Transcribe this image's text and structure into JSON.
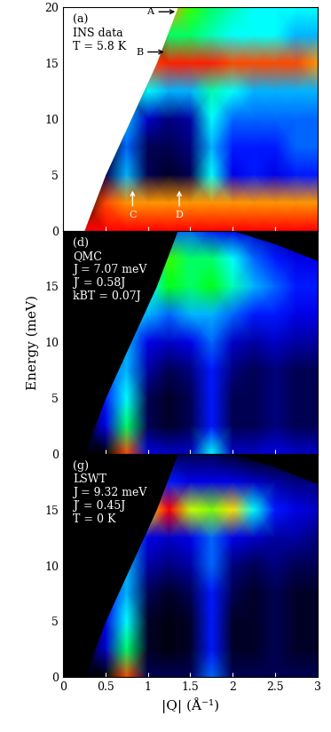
{
  "chart_data": [
    {
      "type": "heatmap",
      "text_lines": [
        "(a)",
        "INS data",
        "T = 5.8 K"
      ],
      "xlim": [
        0,
        3
      ],
      "ylim": [
        0,
        20
      ],
      "xticks": [
        0,
        0.5,
        1,
        1.5,
        2,
        2.5,
        3
      ],
      "yticks": [
        0,
        5,
        10,
        15,
        20
      ],
      "tick_labels": "y",
      "zlim": [
        0,
        1
      ],
      "q": [
        0,
        0.25,
        0.5,
        0.75,
        1.0,
        1.25,
        1.5,
        1.75,
        2.0,
        2.25,
        2.5,
        2.75,
        3.0
      ],
      "energy": [
        0,
        2.5,
        5,
        7.5,
        10,
        12.5,
        15,
        17.5,
        20
      ],
      "cells": [
        [
          0,
          1,
          1,
          1,
          1,
          1,
          1,
          1,
          1,
          1,
          1,
          1,
          1
        ],
        [
          0,
          0,
          0.95,
          0.9,
          0.9,
          0.9,
          0.9,
          0.9,
          0.9,
          0.9,
          0.9,
          0.9,
          0.9
        ],
        [
          0,
          0,
          0.1,
          0.45,
          0.1,
          0.05,
          0.1,
          0.5,
          0.3,
          0.35,
          0.3,
          0.35,
          0.35
        ],
        [
          0,
          0,
          0,
          0.4,
          0.1,
          0.1,
          0.15,
          0.45,
          0.35,
          0.35,
          0.35,
          0.4,
          0.4
        ],
        [
          0,
          0,
          0,
          0.45,
          0.25,
          0.15,
          0.2,
          0.5,
          0.4,
          0.4,
          0.4,
          0.4,
          0.4
        ],
        [
          0,
          0,
          0,
          0,
          0.5,
          0.45,
          0.45,
          0.55,
          0.5,
          0.45,
          0.45,
          0.45,
          0.45
        ],
        [
          0,
          0,
          0,
          0,
          0.95,
          0.98,
          0.98,
          0.98,
          0.95,
          0.95,
          0.95,
          0.95,
          0.9
        ],
        [
          0,
          0,
          0,
          0,
          0,
          0.6,
          0.6,
          0.55,
          0.5,
          0.5,
          0.5,
          0.45,
          0.45
        ],
        [
          0,
          0,
          0,
          0,
          0,
          0.9,
          0.7,
          0.6,
          0.55,
          0.5,
          0.5,
          0.5,
          0.5
        ]
      ],
      "coverage": {
        "energy": [
          0,
          5,
          10,
          15,
          20
        ],
        "q_min": [
          0.25,
          0.5,
          0.8,
          1.1,
          1.35
        ]
      },
      "annotations": [
        {
          "text": "A",
          "x": 1.35,
          "y": 19.6
        },
        {
          "text": "B",
          "x": 1.22,
          "y": 16
        },
        {
          "text": "C",
          "x": 0.82,
          "y": 3.8
        },
        {
          "text": "D",
          "x": 1.37,
          "y": 3.8
        }
      ]
    },
    {
      "type": "heatmap",
      "text_lines": [
        "(d)",
        "QMC",
        "J = 7.07 meV",
        "J′ = 0.58J",
        "kBT = 0.07J"
      ],
      "ylabel": "Energy (meV)",
      "xlim": [
        0,
        3
      ],
      "ylim": [
        0,
        20
      ],
      "xticks": [
        0,
        0.5,
        1,
        1.5,
        2,
        2.5,
        3
      ],
      "yticks": [
        0,
        5,
        10,
        15
      ],
      "tick_labels": "y",
      "zlim": [
        0,
        1
      ],
      "q": [
        0,
        0.25,
        0.5,
        0.75,
        1.0,
        1.25,
        1.5,
        1.75,
        2.0,
        2.25,
        2.5,
        2.75,
        3.0
      ],
      "energy": [
        0,
        2.5,
        5,
        7.5,
        10,
        12.5,
        15,
        17.5,
        20
      ],
      "cells": [
        [
          0,
          0,
          0,
          0.95,
          0.3,
          0.25,
          0.25,
          0.5,
          0.25,
          0.25,
          0.3,
          0.25,
          0.25
        ],
        [
          0,
          0,
          0.3,
          0.6,
          0.1,
          0.05,
          0.1,
          0.35,
          0.1,
          0.1,
          0.15,
          0.1,
          0.1
        ],
        [
          0,
          0,
          0.35,
          0.5,
          0.1,
          0.05,
          0.1,
          0.35,
          0.1,
          0.1,
          0.15,
          0.1,
          0.1
        ],
        [
          0,
          0,
          0.4,
          0.45,
          0.2,
          0.1,
          0.15,
          0.35,
          0.15,
          0.1,
          0.15,
          0.1,
          0.1
        ],
        [
          0,
          0,
          0,
          0.45,
          0.3,
          0.25,
          0.3,
          0.4,
          0.25,
          0.2,
          0.25,
          0.2,
          0.2
        ],
        [
          0,
          0,
          0,
          0.45,
          0.45,
          0.4,
          0.45,
          0.45,
          0.4,
          0.35,
          0.35,
          0.3,
          0.3
        ],
        [
          0,
          0,
          0,
          0,
          0.5,
          0.65,
          0.6,
          0.65,
          0.55,
          0.45,
          0.4,
          0.35,
          0.35
        ],
        [
          0,
          0,
          0,
          0,
          0.45,
          0.7,
          0.6,
          0.6,
          0.5,
          0.4,
          0.35,
          0.3,
          0.3
        ],
        [
          0,
          0,
          0,
          0,
          0,
          0.4,
          0.4,
          0.35,
          0.3,
          0.25,
          0.2,
          0.15,
          0.1
        ]
      ],
      "coverage": {
        "energy": [
          0,
          5,
          10,
          15,
          20
        ],
        "q_min": [
          0.25,
          0.5,
          0.8,
          1.1,
          1.35
        ]
      },
      "upper_edge": {
        "q": [
          2.0,
          2.5,
          3.0
        ],
        "energy_max": [
          20,
          18.8,
          17.3
        ]
      }
    },
    {
      "type": "heatmap",
      "text_lines": [
        "(g)",
        "LSWT",
        "J = 9.32 meV",
        "J′ = 0.45J",
        "T = 0 K"
      ],
      "xlabel": "|Q| (Å⁻¹)",
      "xlim": [
        0,
        3
      ],
      "ylim": [
        0,
        20
      ],
      "xticks": [
        0,
        0.5,
        1,
        1.5,
        2,
        2.5,
        3
      ],
      "yticks": [
        0,
        5,
        10,
        15
      ],
      "zlim": [
        0,
        1
      ],
      "q": [
        0,
        0.25,
        0.5,
        0.75,
        1.0,
        1.25,
        1.5,
        1.75,
        2.0,
        2.25,
        2.5,
        2.75,
        3.0
      ],
      "energy": [
        0,
        2.5,
        5,
        7.5,
        10,
        12.5,
        15,
        17.5,
        20
      ],
      "cells": [
        [
          0,
          0,
          0,
          0.95,
          0.1,
          0.1,
          0.1,
          0.4,
          0.1,
          0.1,
          0.1,
          0.1,
          0.1
        ],
        [
          0,
          0,
          0.25,
          0.6,
          0.05,
          0.02,
          0.05,
          0.35,
          0.05,
          0.05,
          0.1,
          0.05,
          0.05
        ],
        [
          0,
          0,
          0.3,
          0.5,
          0.05,
          0.02,
          0.05,
          0.35,
          0.05,
          0.05,
          0.1,
          0.05,
          0.05
        ],
        [
          0,
          0,
          0.35,
          0.45,
          0.1,
          0.05,
          0.1,
          0.35,
          0.1,
          0.05,
          0.1,
          0.05,
          0.05
        ],
        [
          0,
          0,
          0,
          0.45,
          0.2,
          0.15,
          0.2,
          0.4,
          0.15,
          0.1,
          0.15,
          0.1,
          0.1
        ],
        [
          0,
          0,
          0,
          0.45,
          0.3,
          0.25,
          0.3,
          0.4,
          0.3,
          0.25,
          0.2,
          0.2,
          0.15
        ],
        [
          0,
          0,
          0,
          0,
          0.85,
          1.0,
          0.8,
          0.75,
          0.85,
          0.5,
          0.35,
          0.3,
          0.25
        ],
        [
          0,
          0,
          0,
          0,
          0.3,
          0.35,
          0.3,
          0.3,
          0.3,
          0.25,
          0.2,
          0.15,
          0.15
        ],
        [
          0,
          0,
          0,
          0,
          0,
          0.1,
          0.1,
          0.1,
          0.05,
          0,
          0,
          0,
          0
        ]
      ],
      "coverage": {
        "energy": [
          0,
          5,
          10,
          15,
          20
        ],
        "q_min": [
          0.25,
          0.5,
          0.8,
          1.1,
          1.35
        ]
      },
      "upper_edge": {
        "q": [
          2.0,
          2.5,
          3.0
        ],
        "energy_max": [
          20,
          18.8,
          17.3
        ]
      }
    }
  ]
}
